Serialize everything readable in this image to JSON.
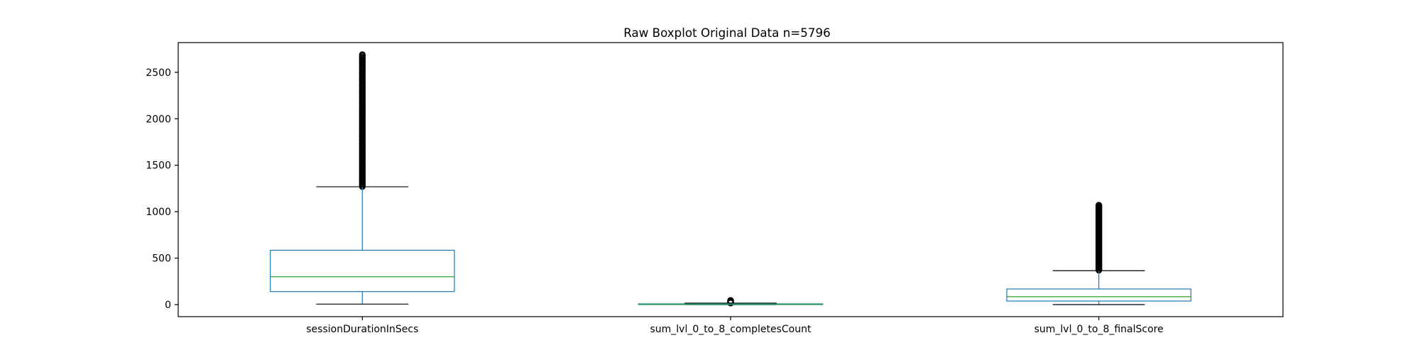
{
  "chart_data": {
    "type": "boxplot",
    "title": "Raw Boxplot Original Data n=5796",
    "xlabel": "",
    "ylabel": "",
    "ylim": [
      -130,
      2820
    ],
    "yticks": [
      0,
      500,
      1000,
      1500,
      2000,
      2500
    ],
    "grid": false,
    "legend": "none",
    "colors": {
      "box": "#1f77b4",
      "median": "#2ca02c",
      "caps": "#000000",
      "fliers": "#000000"
    },
    "categories": [
      "sessionDurationInSecs",
      "sum_lvl_0_to_8_completesCount",
      "sum_lvl_0_to_8_finalScore"
    ],
    "boxes": [
      {
        "label": "sessionDurationInSecs",
        "whislo": 5,
        "q1": 140,
        "med": 300,
        "q3": 585,
        "whishi": 1268,
        "flier_range": [
          1270,
          2690
        ],
        "flier_samples": [
          1290,
          1320,
          1350,
          1380,
          1410,
          1450,
          1490,
          1530,
          1570,
          1610,
          1650,
          1690,
          1730,
          1770,
          1810,
          1850,
          1890,
          1930,
          1970,
          2010,
          2060,
          2110,
          2170,
          2230,
          2290,
          2350,
          2420,
          2490,
          2550,
          2610,
          2650,
          2690
        ]
      },
      {
        "label": "sum_lvl_0_to_8_completesCount",
        "whislo": 0,
        "q1": 3,
        "med": 5,
        "q3": 8,
        "whishi": 15,
        "flier_range": [
          16,
          45
        ],
        "flier_samples": [
          18,
          24,
          30,
          36,
          42
        ]
      },
      {
        "label": "sum_lvl_0_to_8_finalScore",
        "whislo": 0,
        "q1": 38,
        "med": 85,
        "q3": 168,
        "whishi": 365,
        "flier_range": [
          370,
          1070
        ],
        "flier_samples": [
          380,
          410,
          440,
          470,
          500,
          530,
          560,
          590,
          620,
          650,
          680,
          710,
          740,
          770,
          800,
          830,
          860,
          890,
          920,
          950,
          980,
          1010,
          1040,
          1065
        ]
      }
    ]
  }
}
